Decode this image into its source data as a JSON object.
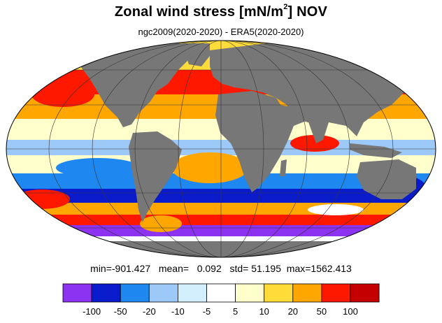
{
  "title": {
    "prefix": "Zonal wind stress [mN/m",
    "superscript": "2",
    "suffix": "] NOV"
  },
  "subtitle": "ngc2009(2020-2020) - ERA5(2020-2020)",
  "stats": {
    "min_label": "min=",
    "min_value": "-901.427",
    "mean_label": "mean=",
    "mean_value": "0.092",
    "std_label": "std=",
    "std_value": "51.195",
    "max_label": "max=",
    "max_value": "1562.413"
  },
  "map": {
    "projection": "mollweide",
    "land_color": "#777777",
    "ocean_pattern": "difference field, blue negative / red positive",
    "gridlines": true
  },
  "colorbar": {
    "colors": [
      "#8b33f0",
      "#0a1bcc",
      "#1e88f0",
      "#9cc9f8",
      "#d3eefc",
      "#ffffff",
      "#ffffcc",
      "#ffdc3a",
      "#ffa600",
      "#ff1800",
      "#c40000"
    ],
    "tick_labels": [
      "-100",
      "-50",
      "-20",
      "-10",
      "-5",
      "5",
      "10",
      "20",
      "50",
      "100"
    ]
  }
}
